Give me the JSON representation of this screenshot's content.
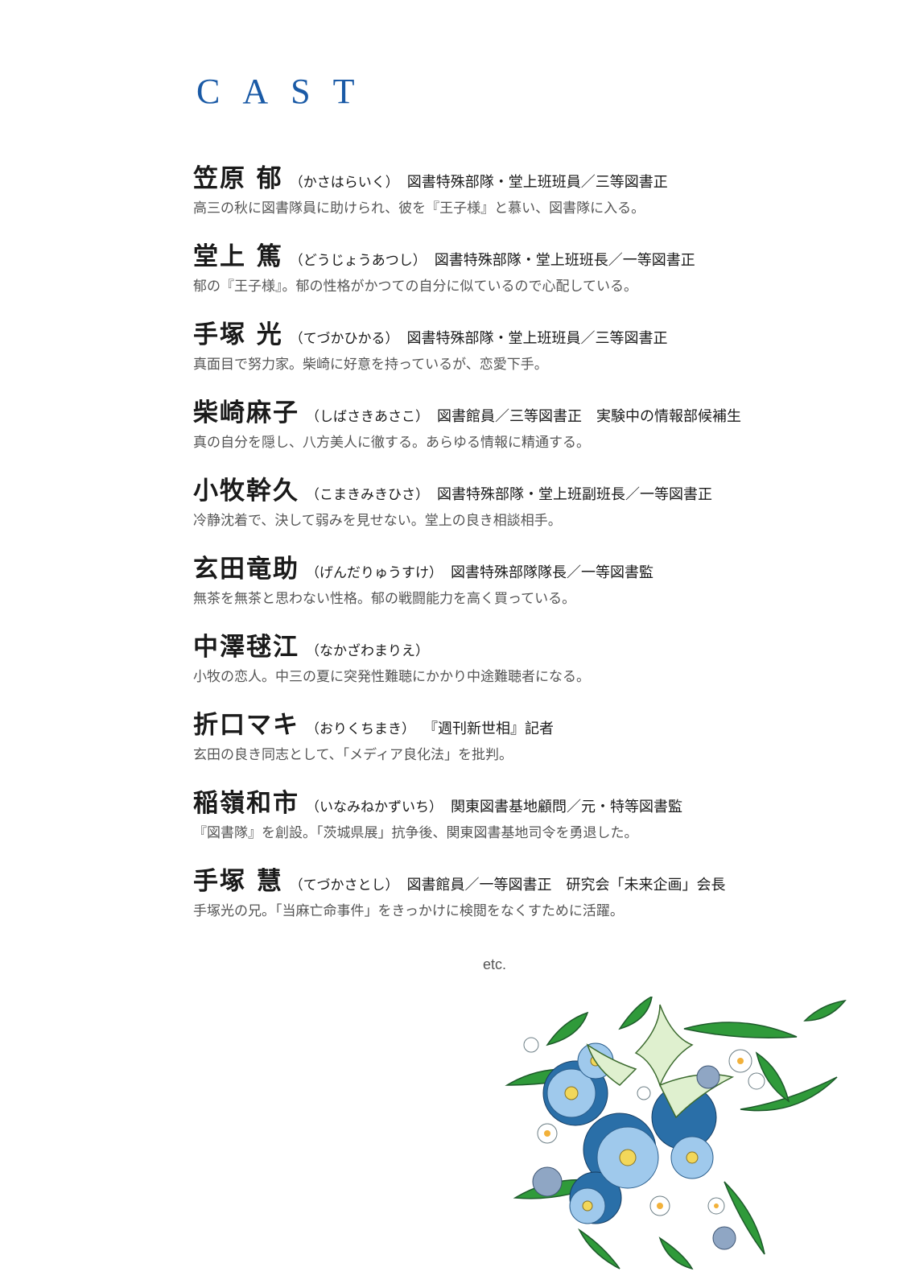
{
  "page_title": "CAST",
  "cast": [
    {
      "name": "笠原 郁",
      "reading": "（かさはらいく）",
      "role": "図書特殊部隊・堂上班班員／三等図書正",
      "description": "高三の秋に図書隊員に助けられ、彼を『王子様』と慕い、図書隊に入る。"
    },
    {
      "name": "堂上 篤",
      "reading": "（どうじょうあつし）",
      "role": "図書特殊部隊・堂上班班長／一等図書正",
      "description": "郁の『王子様』。郁の性格がかつての自分に似ているので心配している。"
    },
    {
      "name": "手塚 光",
      "reading": "（てづかひかる）",
      "role": "図書特殊部隊・堂上班班員／三等図書正",
      "description": "真面目で努力家。柴崎に好意を持っているが、恋愛下手。"
    },
    {
      "name": "柴崎麻子",
      "reading": "（しばさきあさこ）",
      "role": "図書館員／三等図書正　実験中の情報部候補生",
      "description": "真の自分を隠し、八方美人に徹する。あらゆる情報に精通する。"
    },
    {
      "name": "小牧幹久",
      "reading": "（こまきみきひさ）",
      "role": "図書特殊部隊・堂上班副班長／一等図書正",
      "description": "冷静沈着で、決して弱みを見せない。堂上の良き相談相手。"
    },
    {
      "name": "玄田竜助",
      "reading": "（げんだりゅうすけ）",
      "role": "図書特殊部隊隊長／一等図書監",
      "description": "無茶を無茶と思わない性格。郁の戦闘能力を高く買っている。"
    },
    {
      "name": "中澤毬江",
      "reading": "（なかざわまりえ）",
      "role": "",
      "description": "小牧の恋人。中三の夏に突発性難聴にかかり中途難聴者になる。"
    },
    {
      "name": "折口マキ",
      "reading": "（おりくちまき）",
      "role": "『週刊新世相』記者",
      "description": "玄田の良き同志として、「メディア良化法」を批判。"
    },
    {
      "name": "稲嶺和市",
      "reading": "（いなみねかずいち）",
      "role": "関東図書基地顧問／元・特等図書監",
      "description": "『図書隊』を創設。「茨城県展」抗争後、関東図書基地司令を勇退した。"
    },
    {
      "name": "手塚 慧",
      "reading": "（てづかさとし）",
      "role": "図書館員／一等図書正　研究会「未来企画」会長",
      "description": "手塚光の兄。「当麻亡命事件」をきっかけに検閲をなくすために活躍。"
    }
  ],
  "etc_label": "etc.",
  "colors": {
    "title": "#1a5aa6",
    "leaf": "#2f9a3a",
    "flower_blue": "#7fb3e0",
    "flower_dark": "#2a6fa8"
  },
  "illustration": "flower-bouquet-icon"
}
